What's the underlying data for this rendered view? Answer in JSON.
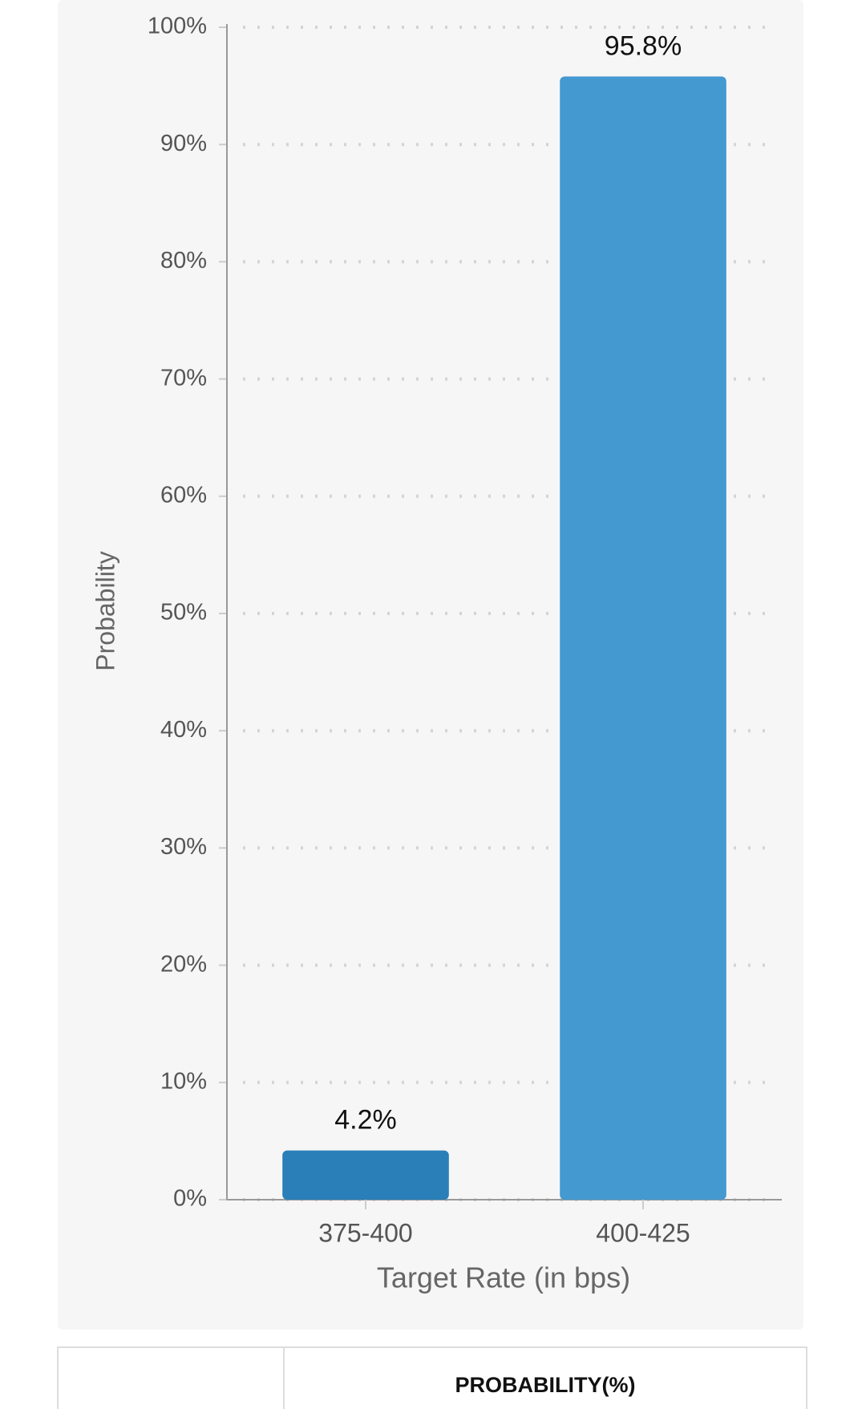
{
  "chart_data": {
    "type": "bar",
    "y_label": "Probability",
    "x_label": "Target Rate (in bps)",
    "categories": [
      "375-400",
      "400-425"
    ],
    "series": [
      {
        "name": "Probability",
        "values": [
          4.2,
          95.8
        ],
        "value_labels": [
          "4.2%",
          "95.8%"
        ],
        "colors": [
          "#2a7fb8",
          "#4499d1"
        ]
      }
    ],
    "ylim": [
      0,
      100
    ],
    "yticks": [
      {
        "value": 0,
        "label": "0%"
      },
      {
        "value": 10,
        "label": "10%"
      },
      {
        "value": 20,
        "label": "20%"
      },
      {
        "value": 30,
        "label": "30%"
      },
      {
        "value": 40,
        "label": "40%"
      },
      {
        "value": 50,
        "label": "50%"
      },
      {
        "value": 60,
        "label": "60%"
      },
      {
        "value": 70,
        "label": "70%"
      },
      {
        "value": 80,
        "label": "80%"
      },
      {
        "value": 90,
        "label": "90%"
      },
      {
        "value": 100,
        "label": "100%"
      }
    ],
    "grid": true
  },
  "table": {
    "header": "PROBABILITY(%)"
  }
}
